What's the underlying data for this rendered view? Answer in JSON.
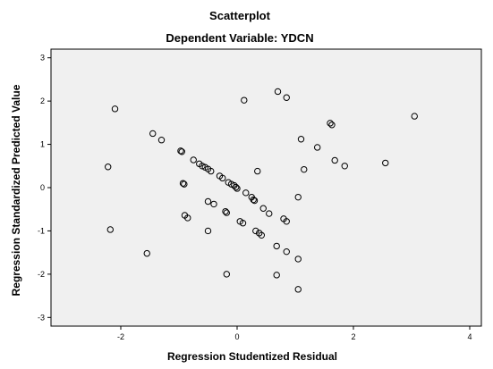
{
  "chart_data": {
    "type": "scatter",
    "title": "Scatterplot",
    "subtitle": "Dependent Variable: YDCN",
    "xlabel": "Regression Studentized Residual",
    "ylabel": "Regression Standardized Predicted Value",
    "xlim": [
      -3.2,
      4.2
    ],
    "ylim": [
      -3.2,
      3.2
    ],
    "xticks": [
      -2,
      0,
      2,
      4
    ],
    "yticks": [
      3,
      2,
      1,
      0,
      -1,
      -2,
      -3
    ],
    "grid": false,
    "background": "#f0f0f0",
    "marker_color": "#000000",
    "points": [
      {
        "x": -2.1,
        "y": 1.82
      },
      {
        "x": -2.22,
        "y": 0.48
      },
      {
        "x": -2.18,
        "y": -0.97
      },
      {
        "x": -1.55,
        "y": -1.52
      },
      {
        "x": -1.45,
        "y": 1.25
      },
      {
        "x": -1.3,
        "y": 1.1
      },
      {
        "x": -0.97,
        "y": 0.85
      },
      {
        "x": -0.95,
        "y": 0.83
      },
      {
        "x": -0.93,
        "y": 0.1
      },
      {
        "x": -0.91,
        "y": 0.08
      },
      {
        "x": -0.9,
        "y": -0.64
      },
      {
        "x": -0.85,
        "y": -0.7
      },
      {
        "x": -0.75,
        "y": 0.64
      },
      {
        "x": -0.65,
        "y": 0.55
      },
      {
        "x": -0.6,
        "y": 0.5
      },
      {
        "x": -0.55,
        "y": 0.47
      },
      {
        "x": -0.5,
        "y": 0.43
      },
      {
        "x": -0.5,
        "y": -0.32
      },
      {
        "x": -0.5,
        "y": -1.0
      },
      {
        "x": -0.45,
        "y": 0.38
      },
      {
        "x": -0.4,
        "y": -0.38
      },
      {
        "x": -0.3,
        "y": 0.27
      },
      {
        "x": -0.25,
        "y": 0.22
      },
      {
        "x": -0.2,
        "y": -0.55
      },
      {
        "x": -0.18,
        "y": -0.58
      },
      {
        "x": -0.18,
        "y": -2.0
      },
      {
        "x": -0.15,
        "y": 0.12
      },
      {
        "x": -0.1,
        "y": 0.08
      },
      {
        "x": -0.05,
        "y": 0.05
      },
      {
        "x": -0.02,
        "y": 0.01
      },
      {
        "x": 0.0,
        "y": -0.02
      },
      {
        "x": 0.05,
        "y": -0.78
      },
      {
        "x": 0.1,
        "y": -0.82
      },
      {
        "x": 0.15,
        "y": -0.12
      },
      {
        "x": 0.12,
        "y": 2.02
      },
      {
        "x": 0.25,
        "y": -0.22
      },
      {
        "x": 0.28,
        "y": -0.28
      },
      {
        "x": 0.3,
        "y": -0.3
      },
      {
        "x": 0.32,
        "y": -1.0
      },
      {
        "x": 0.38,
        "y": -1.05
      },
      {
        "x": 0.42,
        "y": -1.1
      },
      {
        "x": 0.35,
        "y": 0.38
      },
      {
        "x": 0.45,
        "y": -0.48
      },
      {
        "x": 0.55,
        "y": -0.6
      },
      {
        "x": 0.68,
        "y": -1.35
      },
      {
        "x": 0.68,
        "y": -2.02
      },
      {
        "x": 0.7,
        "y": 2.22
      },
      {
        "x": 0.8,
        "y": -0.72
      },
      {
        "x": 0.85,
        "y": -0.78
      },
      {
        "x": 0.85,
        "y": -1.48
      },
      {
        "x": 0.85,
        "y": 2.08
      },
      {
        "x": 1.05,
        "y": -0.22
      },
      {
        "x": 1.05,
        "y": -1.65
      },
      {
        "x": 1.05,
        "y": -2.35
      },
      {
        "x": 1.1,
        "y": 1.12
      },
      {
        "x": 1.15,
        "y": 0.42
      },
      {
        "x": 1.38,
        "y": 0.93
      },
      {
        "x": 1.6,
        "y": 1.49
      },
      {
        "x": 1.63,
        "y": 1.45
      },
      {
        "x": 1.68,
        "y": 0.63
      },
      {
        "x": 1.85,
        "y": 0.5
      },
      {
        "x": 2.55,
        "y": 0.57
      },
      {
        "x": 3.05,
        "y": 1.65
      }
    ]
  }
}
